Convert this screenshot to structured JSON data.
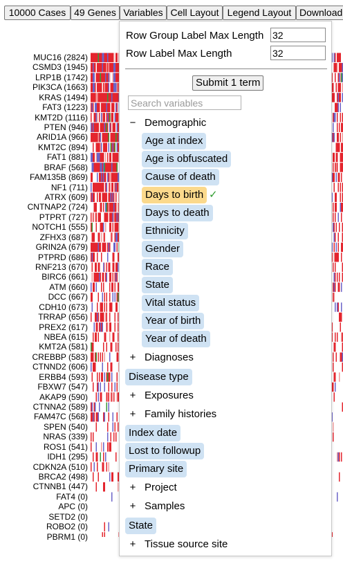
{
  "toolbar": {
    "buttons": [
      "10000 Cases",
      "49 Genes",
      "Variables",
      "Cell Layout",
      "Legend Layout",
      "Download"
    ]
  },
  "genes": [
    "MUC16 (2824)",
    "CSMD3 (1945)",
    "LRP1B (1742)",
    "PIK3CA (1663)",
    "KRAS (1494)",
    "FAT3 (1223)",
    "KMT2D (1116)",
    "PTEN (946)",
    "ARID1A (966)",
    "KMT2C (894)",
    "FAT1 (881)",
    "BRAF (568)",
    "FAM135B (869)",
    "NF1 (711)",
    "ATRX (609)",
    "CNTNAP2 (724)",
    "PTPRT (727)",
    "NOTCH1 (555)",
    "ZFHX3 (687)",
    "GRIN2A (679)",
    "PTPRD (686)",
    "RNF213 (670)",
    "BIRC6 (661)",
    "ATM (660)",
    "DCC (667)",
    "CDH10 (673)",
    "TRRAP (656)",
    "PREX2 (617)",
    "NBEA (615)",
    "KMT2A (581)",
    "CREBBP (583)",
    "CTNND2 (606)",
    "ERBB4 (593)",
    "FBXW7 (547)",
    "AKAP9 (590)",
    "CTNNA2 (589)",
    "FAM47C (568)",
    "SPEN (540)",
    "NRAS (339)",
    "ROS1 (541)",
    "IDH1 (295)",
    "CDKN2A (510)",
    "BRCA2 (498)",
    "CTNNB1 (447)",
    "FAT4 (0)",
    "APC (0)",
    "SETD2 (0)",
    "ROBO2 (0)",
    "PBRM1 (0)"
  ],
  "panel": {
    "settings": [
      {
        "label": "Row Group Label Max Length",
        "value": "32"
      },
      {
        "label": "Row Label Max Length",
        "value": "32"
      }
    ],
    "submit_label": "Submit 1 term",
    "search_placeholder": "Search variables",
    "tree": {
      "demographic": {
        "toggle": "−",
        "label": "Demographic",
        "terms": [
          "Age at index",
          "Age is obfuscated",
          "Cause of death",
          "Days to birth",
          "Days to death",
          "Ethnicity",
          "Gender",
          "Race",
          "State",
          "Vital status",
          "Year of birth",
          "Year of death"
        ],
        "selected_term": "Days to birth",
        "selected_mark": "✓"
      },
      "diagnoses": {
        "toggle": "+",
        "label": "Diagnoses"
      },
      "disease_type": "Disease type",
      "exposures": {
        "toggle": "+",
        "label": "Exposures"
      },
      "family_histories": {
        "toggle": "+",
        "label": "Family histories"
      },
      "index_date": "Index date",
      "lost_to_followup": "Lost to followup",
      "primary_site": "Primary site",
      "project": {
        "toggle": "+",
        "label": "Project"
      },
      "samples": {
        "toggle": "+",
        "label": "Samples"
      },
      "state": "State",
      "tissue_source_site": {
        "toggle": "+",
        "label": "Tissue source site"
      }
    }
  },
  "colors": {
    "selected_term": "#fbd98c",
    "term": "#cfe2f3",
    "checkmark": "#2e9c2e",
    "missense": "#e4252e",
    "truncating": "#6b63c8",
    "silent": "#3a9a3a"
  }
}
